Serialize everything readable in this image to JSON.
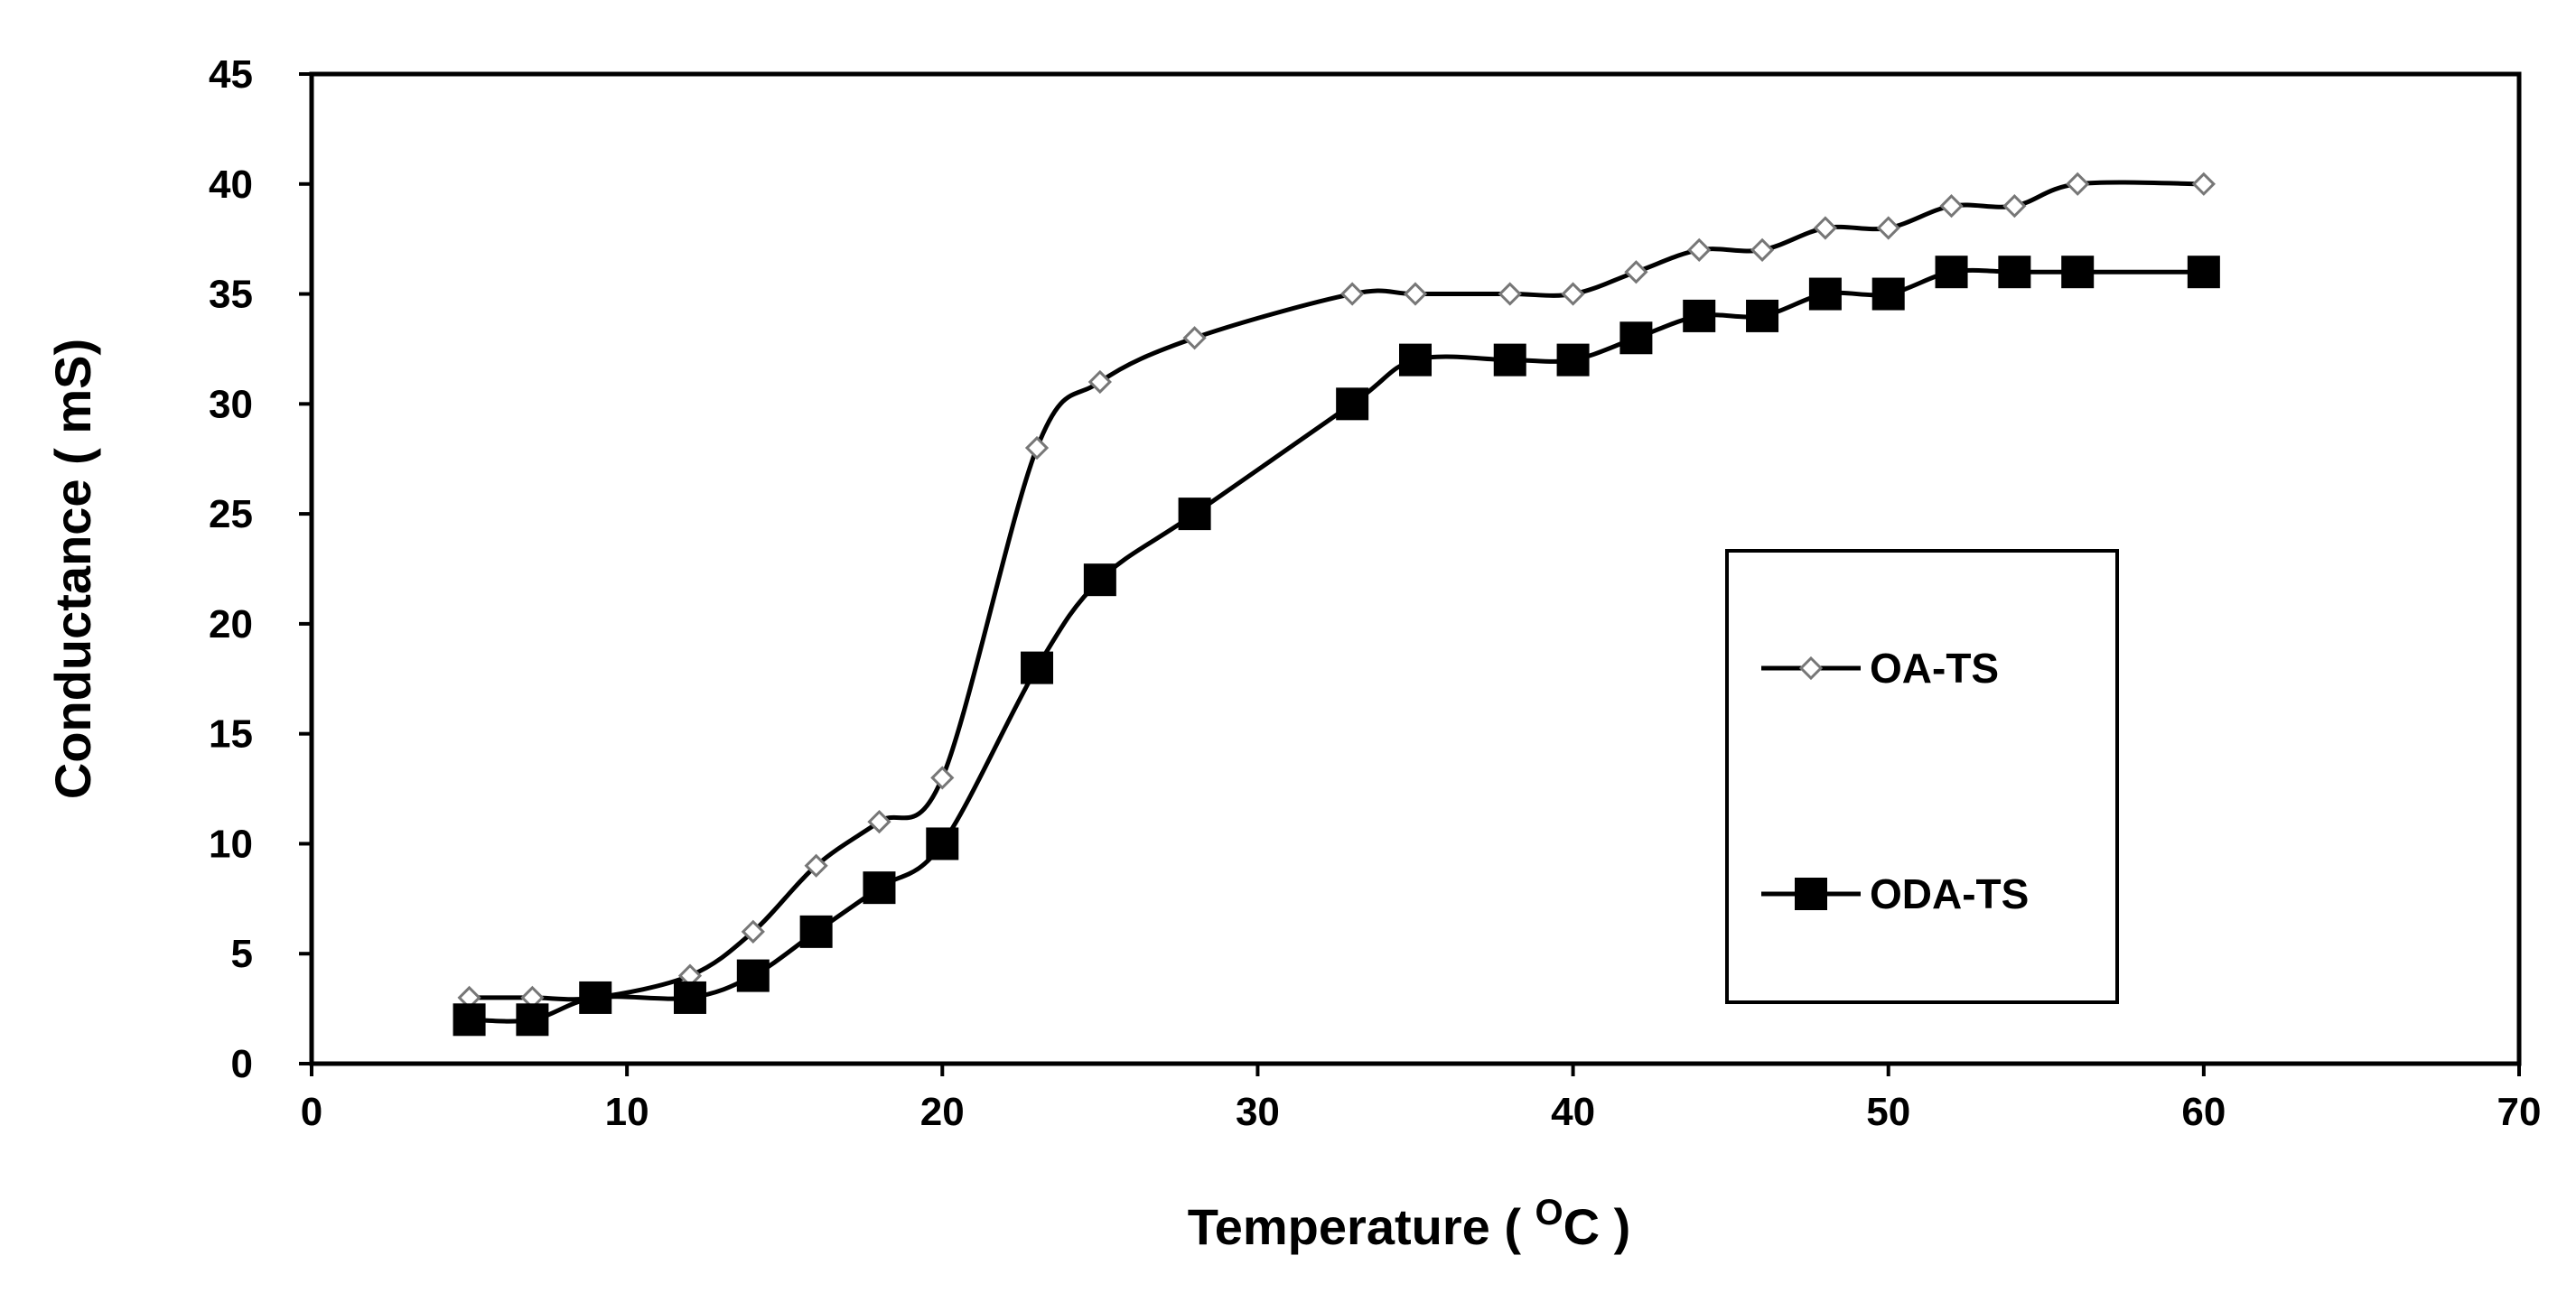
{
  "chart_data": {
    "type": "line",
    "title": "",
    "xlabel": "Temperature ( ",
    "xlabel_unit_sup": "O",
    "xlabel_unit": "C )",
    "ylabel": "Conductance ( mS)",
    "xlim": [
      0,
      70
    ],
    "ylim": [
      0,
      45
    ],
    "x_ticks": [
      0,
      10,
      20,
      30,
      40,
      50,
      60,
      70
    ],
    "y_ticks": [
      0,
      5,
      10,
      15,
      20,
      25,
      30,
      35,
      40,
      45
    ],
    "grid": false,
    "legend_position": "center-right",
    "series": [
      {
        "name": "OA-TS",
        "marker": "open-diamond",
        "color": "#000000",
        "x": [
          5,
          7,
          9,
          12,
          14,
          16,
          18,
          20,
          23,
          25,
          28,
          33,
          35,
          38,
          40,
          42,
          44,
          46,
          48,
          50,
          52,
          54,
          56,
          60
        ],
        "y": [
          3,
          3,
          3,
          4,
          6,
          9,
          11,
          13,
          28,
          31,
          33,
          35,
          35,
          35,
          35,
          36,
          37,
          37,
          38,
          38,
          39,
          39,
          40,
          40
        ]
      },
      {
        "name": "ODA-TS",
        "marker": "filled-square",
        "color": "#000000",
        "x": [
          5,
          7,
          9,
          12,
          14,
          16,
          18,
          20,
          23,
          25,
          28,
          33,
          35,
          38,
          40,
          42,
          44,
          46,
          48,
          50,
          52,
          54,
          56,
          60
        ],
        "y": [
          2,
          2,
          3,
          3,
          4,
          6,
          8,
          10,
          18,
          22,
          25,
          30,
          32,
          32,
          32,
          33,
          34,
          34,
          35,
          35,
          36,
          36,
          36,
          36
        ]
      }
    ]
  }
}
